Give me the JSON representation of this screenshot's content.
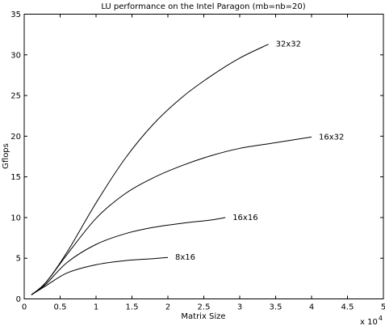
{
  "chart_data": {
    "type": "line",
    "title": "LU performance on the Intel Paragon (mb=nb=20)",
    "xlabel": "Matrix Size",
    "ylabel": "Gflops",
    "x_multiplier": {
      "base": "x 10",
      "exponent": "4"
    },
    "xlim": [
      0,
      5
    ],
    "ylim": [
      0,
      35
    ],
    "xticks": [
      0,
      0.5,
      1,
      1.5,
      2,
      2.5,
      3,
      3.5,
      4,
      4.5,
      5
    ],
    "xtick_labels": [
      "0",
      "0.5",
      "1",
      "1.5",
      "2",
      "2.5",
      "3",
      "3.5",
      "4",
      "4.5",
      "5"
    ],
    "yticks": [
      0,
      5,
      10,
      15,
      20,
      25,
      30,
      35
    ],
    "ytick_labels": [
      "0",
      "5",
      "10",
      "15",
      "20",
      "25",
      "30",
      "35"
    ],
    "grid": false,
    "series": [
      {
        "name": "32x32",
        "x": [
          0.1,
          0.3,
          0.6,
          1.0,
          1.4,
          1.8,
          2.2,
          2.6,
          3.0,
          3.4
        ],
        "y": [
          0.5,
          2.0,
          5.8,
          11.8,
          17.2,
          21.5,
          24.8,
          27.4,
          29.6,
          31.3
        ]
      },
      {
        "name": "16x32",
        "x": [
          0.1,
          0.3,
          0.6,
          1.0,
          1.4,
          1.8,
          2.2,
          2.6,
          3.0,
          3.5,
          4.0
        ],
        "y": [
          0.5,
          2.0,
          5.5,
          9.9,
          12.9,
          14.9,
          16.4,
          17.6,
          18.5,
          19.2,
          19.9
        ]
      },
      {
        "name": "16x16",
        "x": [
          0.1,
          0.3,
          0.6,
          1.0,
          1.4,
          1.8,
          2.2,
          2.6,
          2.8
        ],
        "y": [
          0.5,
          1.8,
          4.5,
          6.7,
          8.0,
          8.8,
          9.3,
          9.7,
          10.0
        ]
      },
      {
        "name": "8x16",
        "x": [
          0.1,
          0.3,
          0.6,
          1.0,
          1.4,
          1.8,
          2.0
        ],
        "y": [
          0.5,
          1.6,
          3.2,
          4.2,
          4.7,
          4.95,
          5.1
        ]
      }
    ]
  }
}
